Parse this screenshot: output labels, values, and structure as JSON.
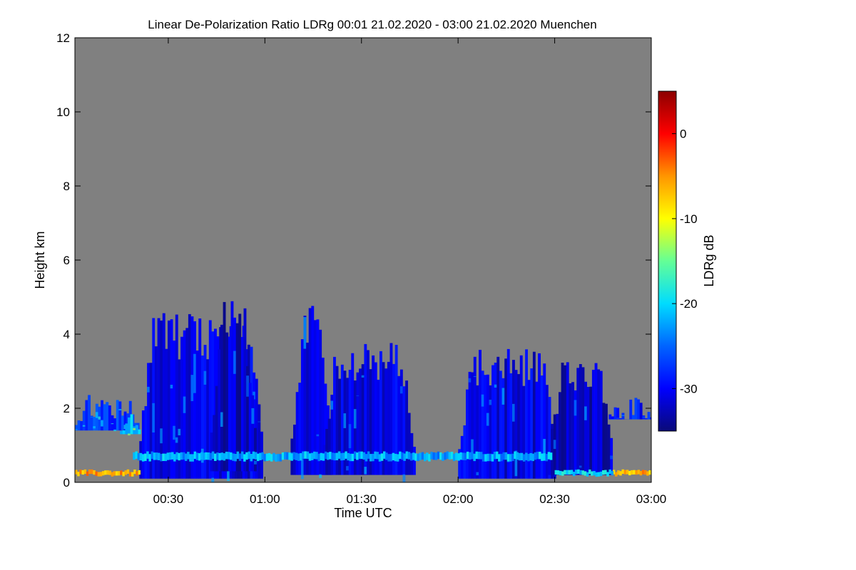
{
  "chart_data": {
    "type": "heatmap",
    "title": "Linear De-Polarization Ratio LDRg   00:01 21.02.2020 - 03:00 21.02.2020 Muenchen",
    "xlabel": "Time UTC",
    "ylabel": "Height km",
    "xlim_minutes": [
      1,
      180
    ],
    "ylim": [
      0,
      12
    ],
    "x_ticks": [
      {
        "minutes": 30,
        "label": "00:30"
      },
      {
        "minutes": 60,
        "label": "01:00"
      },
      {
        "minutes": 90,
        "label": "01:30"
      },
      {
        "minutes": 120,
        "label": "02:00"
      },
      {
        "minutes": 150,
        "label": "02:30"
      },
      {
        "minutes": 180,
        "label": "03:00"
      }
    ],
    "y_ticks": [
      {
        "value": 0,
        "label": "0"
      },
      {
        "value": 2,
        "label": "2"
      },
      {
        "value": 4,
        "label": "4"
      },
      {
        "value": 6,
        "label": "6"
      },
      {
        "value": 8,
        "label": "8"
      },
      {
        "value": 10,
        "label": "10"
      },
      {
        "value": 12,
        "label": "12"
      }
    ],
    "colorbar": {
      "label": "LDRg dB",
      "range": [
        -35,
        5
      ],
      "ticks": [
        {
          "value": 0,
          "label": "0"
        },
        {
          "value": -10,
          "label": "-10"
        },
        {
          "value": -20,
          "label": "-20"
        },
        {
          "value": -30,
          "label": "-30"
        }
      ],
      "colors": [
        "#0a0a78",
        "#0000ff",
        "#0064ff",
        "#00dcff",
        "#64ff96",
        "#ffff00",
        "#ff9600",
        "#ff0000",
        "#8c0000"
      ]
    },
    "background_color": "#808080",
    "cloud_regions": [
      {
        "t0": 21,
        "t1": 59,
        "top": 4.6,
        "base": 0.1,
        "ldr": -31
      },
      {
        "t0": 43,
        "t1": 57,
        "top": 4.9,
        "base": 0.3,
        "ldr": -32
      },
      {
        "t0": 68,
        "t1": 80,
        "top": 4.8,
        "base": 0.2,
        "ldr": -31
      },
      {
        "t0": 78,
        "t1": 106,
        "top": 3.8,
        "base": 0.2,
        "ldr": -31
      },
      {
        "t0": 120,
        "t1": 150,
        "top": 3.6,
        "base": 0.1,
        "ldr": -31
      },
      {
        "t0": 148,
        "t1": 168,
        "top": 3.3,
        "base": 0.2,
        "ldr": -32
      },
      {
        "t0": 1,
        "t1": 21,
        "top": 2.4,
        "base": 1.4,
        "ldr": -27
      },
      {
        "t0": 15,
        "t1": 21,
        "top": 2.0,
        "base": 1.3,
        "ldr": -21
      },
      {
        "t0": 166,
        "t1": 180,
        "top": 2.3,
        "base": 1.7,
        "ldr": -29
      }
    ],
    "layers": [
      {
        "t0": 19,
        "t1": 149,
        "height": 0.7,
        "thickness": 0.2,
        "ldr": -22
      },
      {
        "t0": 1,
        "t1": 21,
        "height": 0.25,
        "thickness": 0.12,
        "ldr": -6
      },
      {
        "t0": 168,
        "t1": 180,
        "height": 0.25,
        "thickness": 0.12,
        "ldr": -6
      },
      {
        "t0": 150,
        "t1": 168,
        "height": 0.25,
        "thickness": 0.12,
        "ldr": -20
      }
    ]
  }
}
